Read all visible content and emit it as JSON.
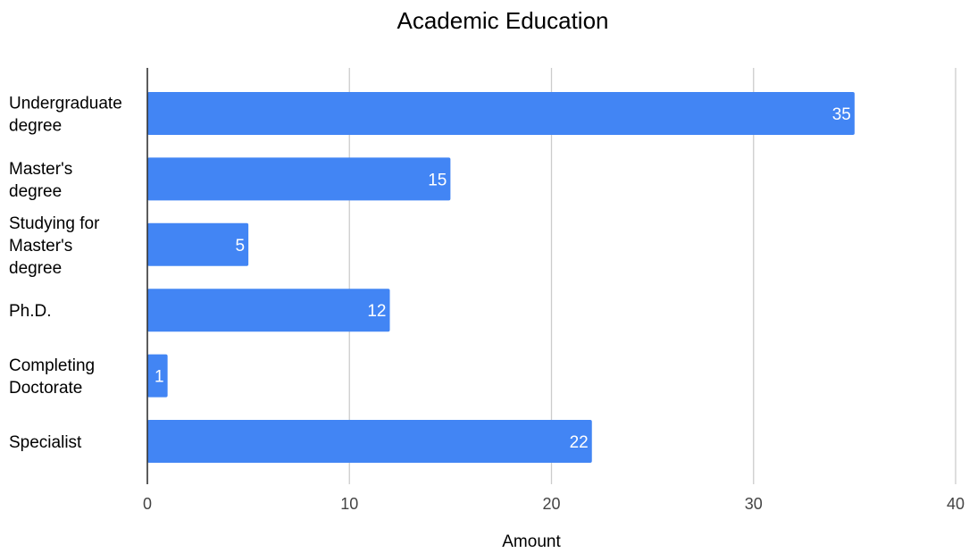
{
  "chart_data": {
    "type": "bar",
    "orientation": "horizontal",
    "title": "Academic Education",
    "xlabel": "Amount",
    "ylabel": "",
    "categories": [
      [
        "Undergraduate",
        "degree"
      ],
      [
        "Master's",
        "degree"
      ],
      [
        "Studying for",
        "Master's",
        "degree"
      ],
      [
        "Ph.D."
      ],
      [
        "Completing",
        "Doctorate"
      ],
      [
        "Specialist"
      ]
    ],
    "values": [
      35,
      15,
      5,
      12,
      1,
      22
    ],
    "xlim": [
      0,
      40
    ],
    "xticks": [
      "0",
      "10",
      "20",
      "30",
      "40"
    ],
    "grid": "vertical",
    "legend": "none",
    "bar_color": "#4285f4",
    "grid_color": "#cccccc",
    "axis_color": "#333333",
    "data_label_color": "#ffffff"
  }
}
